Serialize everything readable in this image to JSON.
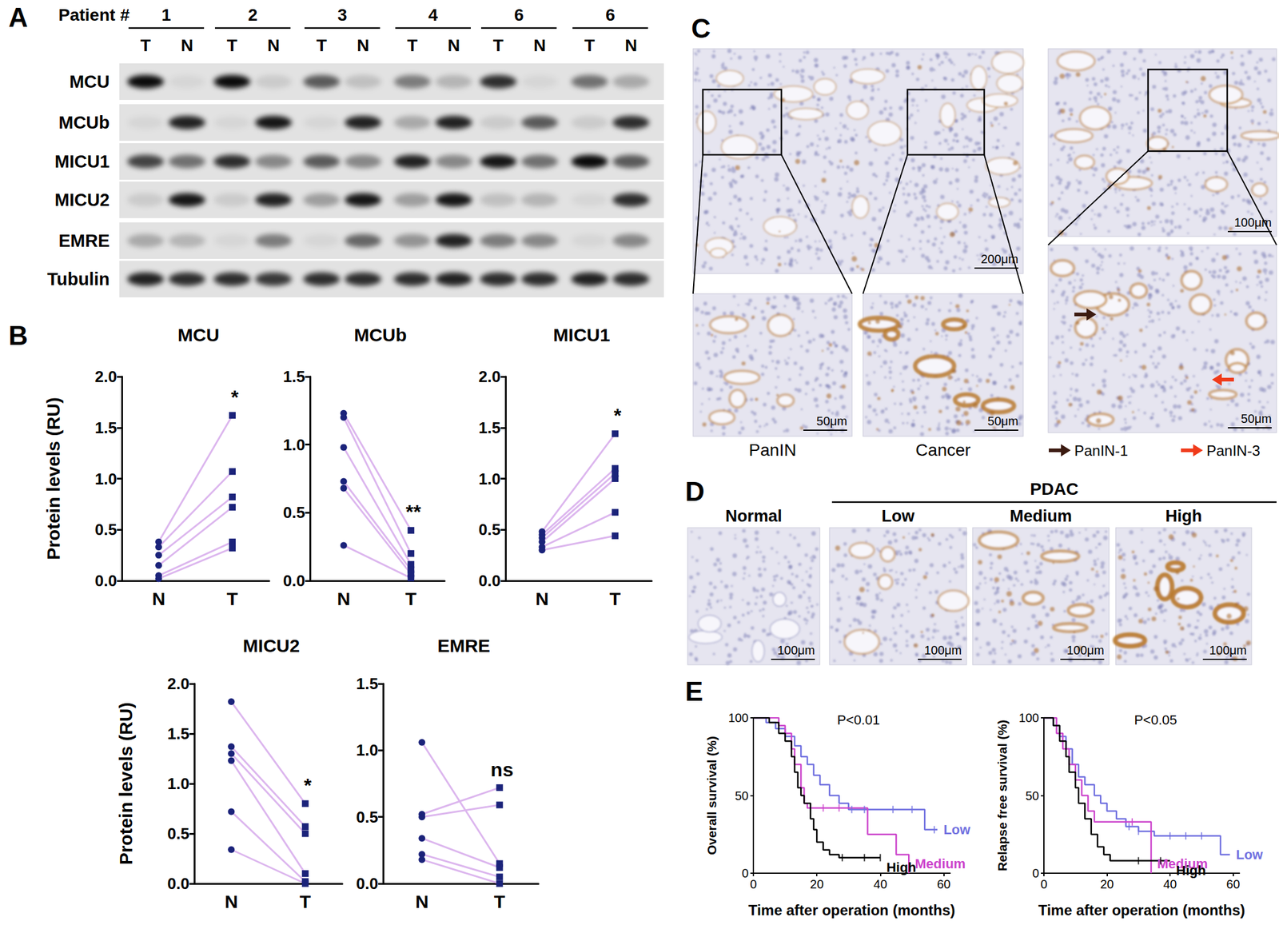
{
  "panel_labels": [
    "A",
    "B",
    "C",
    "D",
    "E"
  ],
  "panel_A": {
    "header": "Patient #",
    "patients": [
      "1",
      "2",
      "3",
      "4",
      "6",
      "6"
    ],
    "lanes": [
      "T",
      "N"
    ],
    "rows": [
      {
        "label": "MCU",
        "bands": [
          0.95,
          0.05,
          0.95,
          0.1,
          0.6,
          0.15,
          0.45,
          0.2,
          0.8,
          0.05,
          0.5,
          0.25
        ]
      },
      {
        "label": "MCUb",
        "bands": [
          0.05,
          0.85,
          0.05,
          0.9,
          0.05,
          0.85,
          0.25,
          0.85,
          0.1,
          0.6,
          0.1,
          0.8
        ]
      },
      {
        "label": "MICU1",
        "bands": [
          0.7,
          0.5,
          0.8,
          0.4,
          0.6,
          0.4,
          0.85,
          0.4,
          0.9,
          0.5,
          0.95,
          0.6
        ]
      },
      {
        "label": "MICU2",
        "bands": [
          0.1,
          0.9,
          0.1,
          0.85,
          0.3,
          0.9,
          0.3,
          0.9,
          0.15,
          0.2,
          0.05,
          0.8
        ]
      },
      {
        "label": "EMRE",
        "bands": [
          0.25,
          0.2,
          0.05,
          0.45,
          0.05,
          0.55,
          0.35,
          0.85,
          0.45,
          0.4,
          0.05,
          0.4
        ]
      },
      {
        "label": "Tubulin",
        "bands": [
          0.85,
          0.8,
          0.8,
          0.75,
          0.8,
          0.8,
          0.8,
          0.85,
          0.8,
          0.8,
          0.85,
          0.8
        ]
      }
    ]
  },
  "chart_data": [
    {
      "type": "paired",
      "title": "MCU",
      "ylabel": "Protein levels (RU)",
      "annotation": "*",
      "grid": false,
      "categories": [
        "N",
        "T"
      ],
      "color": "#1b237a",
      "ylim": [
        0,
        2
      ],
      "yticks": [
        {
          "value": 0,
          "label": "0.0"
        },
        0.5,
        {
          "value": 1,
          "label": "1.0"
        },
        1.5,
        {
          "value": 2,
          "label": "2.0"
        }
      ],
      "series": [
        {
          "color": "#dcb6ee",
          "values": [
            0.38,
            1.62
          ]
        },
        {
          "color": "#dcb6ee",
          "values": [
            0.33,
            1.07
          ]
        },
        {
          "color": "#dcb6ee",
          "values": [
            0.25,
            0.82
          ]
        },
        {
          "color": "#dcb6ee",
          "values": [
            0.15,
            0.72
          ]
        },
        {
          "color": "#dcb6ee",
          "values": [
            0.05,
            0.38
          ]
        },
        {
          "color": "#dcb6ee",
          "values": [
            0.02,
            0.32
          ]
        }
      ]
    },
    {
      "type": "paired",
      "title": "MCUb",
      "annotation": "**",
      "grid": false,
      "categories": [
        "N",
        "T"
      ],
      "color": "#1b237a",
      "ylim": [
        0,
        1.5
      ],
      "yticks": [
        {
          "value": 0,
          "label": "0.0"
        },
        0.5,
        {
          "value": 1,
          "label": "1.0"
        },
        1.5
      ],
      "series": [
        {
          "color": "#dcb6ee",
          "values": [
            1.23,
            0.37
          ]
        },
        {
          "color": "#dcb6ee",
          "values": [
            1.2,
            0.2
          ]
        },
        {
          "color": "#dcb6ee",
          "values": [
            0.98,
            0.12
          ]
        },
        {
          "color": "#dcb6ee",
          "values": [
            0.73,
            0.08
          ]
        },
        {
          "color": "#dcb6ee",
          "values": [
            0.68,
            0.05
          ]
        },
        {
          "color": "#dcb6ee",
          "values": [
            0.26,
            0.02
          ]
        }
      ]
    },
    {
      "type": "paired",
      "title": "MICU1",
      "annotation": "*",
      "grid": false,
      "categories": [
        "N",
        "T"
      ],
      "color": "#1b237a",
      "ylim": [
        0,
        2
      ],
      "yticks": [
        {
          "value": 0,
          "label": "0.0"
        },
        0.5,
        {
          "value": 1,
          "label": "1.0"
        },
        1.5,
        {
          "value": 2,
          "label": "2.0"
        }
      ],
      "series": [
        {
          "color": "#dcb6ee",
          "values": [
            0.48,
            1.44
          ]
        },
        {
          "color": "#dcb6ee",
          "values": [
            0.45,
            1.1
          ]
        },
        {
          "color": "#dcb6ee",
          "values": [
            0.42,
            1.05
          ]
        },
        {
          "color": "#dcb6ee",
          "values": [
            0.38,
            1.0
          ]
        },
        {
          "color": "#dcb6ee",
          "values": [
            0.33,
            0.67
          ]
        },
        {
          "color": "#dcb6ee",
          "values": [
            0.3,
            0.44
          ]
        }
      ]
    },
    {
      "type": "paired",
      "title": "MICU2",
      "ylabel": "Protein levels (RU)",
      "annotation": "*",
      "grid": false,
      "categories": [
        "N",
        "T"
      ],
      "color": "#1b237a",
      "ylim": [
        0,
        2
      ],
      "yticks": [
        {
          "value": 0,
          "label": "0.0"
        },
        0.5,
        {
          "value": 1,
          "label": "1.0"
        },
        1.5,
        {
          "value": 2,
          "label": "2.0"
        }
      ],
      "series": [
        {
          "color": "#dcb6ee",
          "values": [
            1.82,
            0.8
          ]
        },
        {
          "color": "#dcb6ee",
          "values": [
            1.37,
            0.57
          ]
        },
        {
          "color": "#dcb6ee",
          "values": [
            1.3,
            0.5
          ]
        },
        {
          "color": "#dcb6ee",
          "values": [
            1.23,
            0.1
          ]
        },
        {
          "color": "#dcb6ee",
          "values": [
            0.72,
            0.02
          ]
        },
        {
          "color": "#dcb6ee",
          "values": [
            0.34,
            0.0
          ]
        }
      ]
    },
    {
      "type": "paired",
      "title": "EMRE",
      "annotation": "ns",
      "grid": false,
      "categories": [
        "N",
        "T"
      ],
      "color": "#1b237a",
      "ylim": [
        0,
        1.5
      ],
      "yticks": [
        {
          "value": 0,
          "label": "0.0"
        },
        0.5,
        {
          "value": 1,
          "label": "1.0"
        },
        1.5
      ],
      "series": [
        {
          "color": "#dcb6ee",
          "values": [
            1.06,
            0.15
          ]
        },
        {
          "color": "#dcb6ee",
          "values": [
            0.52,
            0.72
          ]
        },
        {
          "color": "#dcb6ee",
          "values": [
            0.5,
            0.59
          ]
        },
        {
          "color": "#dcb6ee",
          "values": [
            0.34,
            0.12
          ]
        },
        {
          "color": "#dcb6ee",
          "values": [
            0.22,
            0.05
          ]
        },
        {
          "color": "#dcb6ee",
          "values": [
            0.18,
            0.0
          ]
        }
      ]
    },
    {
      "type": "survival",
      "ylabel": "Overall survival (%)",
      "xlabel": "Time after operation (months)",
      "annotation": "P<0.01",
      "grid": false,
      "xlim": [
        0,
        62
      ],
      "xticks": [
        0,
        20,
        40,
        60
      ],
      "ylim": [
        0,
        100
      ],
      "yticks": [
        0,
        50,
        100
      ],
      "series": [
        {
          "name": "Low",
          "color": "#7070e0",
          "x": [
            0,
            4,
            7,
            10,
            13,
            15,
            17,
            19,
            21,
            24,
            27,
            30,
            54,
            58
          ],
          "values": [
            100,
            97,
            93,
            88,
            82,
            75,
            70,
            63,
            57,
            50,
            45,
            41,
            28,
            28
          ],
          "censored_x": [
            31,
            35,
            44,
            50,
            57
          ],
          "censored_values": [
            41,
            41,
            41,
            41,
            28
          ]
        },
        {
          "name": "Medium",
          "color": "#cc44cc",
          "x": [
            0,
            8,
            10,
            12,
            13,
            15,
            16,
            17,
            36,
            45,
            49
          ],
          "values": [
            100,
            95,
            90,
            80,
            70,
            55,
            45,
            42,
            25,
            12,
            0
          ],
          "censored_x": [
            22,
            27
          ],
          "censored_values": [
            42,
            42
          ]
        },
        {
          "name": "High",
          "color": "#000000",
          "x": [
            0,
            5,
            8,
            10,
            12,
            13,
            14,
            15,
            16,
            18,
            19,
            20,
            22,
            24,
            27,
            40
          ],
          "values": [
            100,
            97,
            90,
            85,
            75,
            65,
            55,
            50,
            45,
            35,
            28,
            20,
            15,
            12,
            10,
            10
          ],
          "censored_x": [
            28,
            35,
            40
          ],
          "censored_values": [
            10,
            10,
            10
          ]
        }
      ]
    },
    {
      "type": "survival",
      "ylabel": "Relapse free survival (%)",
      "xlabel": "Time after operation (months)",
      "annotation": "P<0.05",
      "grid": false,
      "xlim": [
        0,
        62
      ],
      "xticks": [
        0,
        20,
        40,
        60
      ],
      "ylim": [
        0,
        100
      ],
      "yticks": [
        0,
        50,
        100
      ],
      "series": [
        {
          "name": "Low",
          "color": "#7070e0",
          "x": [
            0,
            3,
            5,
            7,
            9,
            11,
            13,
            16,
            18,
            20,
            23,
            26,
            30,
            35,
            56,
            59
          ],
          "values": [
            100,
            95,
            88,
            80,
            70,
            62,
            57,
            50,
            45,
            40,
            35,
            30,
            27,
            24,
            12,
            12
          ],
          "censored_x": [
            27,
            30,
            40,
            45,
            50
          ],
          "censored_values": [
            30,
            27,
            24,
            24,
            24
          ]
        },
        {
          "name": "Medium",
          "color": "#cc44cc",
          "x": [
            0,
            4,
            6,
            8,
            10,
            12,
            14,
            16,
            34
          ],
          "values": [
            100,
            90,
            80,
            70,
            60,
            50,
            40,
            33,
            0
          ],
          "censored_x": [
            28
          ],
          "censored_values": [
            33
          ]
        },
        {
          "name": "High",
          "color": "#000000",
          "x": [
            0,
            3,
            5,
            7,
            8,
            10,
            11,
            13,
            15,
            17,
            19,
            21,
            40
          ],
          "values": [
            100,
            95,
            85,
            75,
            65,
            55,
            45,
            35,
            25,
            17,
            12,
            8,
            8
          ],
          "censored_x": [
            30,
            37
          ],
          "censored_values": [
            8,
            8
          ]
        }
      ]
    }
  ],
  "panel_C": {
    "overview_left": {
      "scale_bar": "200μm"
    },
    "insets_left": [
      {
        "label": "PanIN",
        "scale_bar": "50μm"
      },
      {
        "label": "Cancer",
        "scale_bar": "50μm"
      }
    ],
    "overview_right": {
      "scale_bar": "100μm"
    },
    "inset_right": {
      "scale_bar": "50μm"
    },
    "arrows": [
      {
        "label": "PanIN-1",
        "color": "#3b1a10"
      },
      {
        "label": "PanIN-3",
        "color": "#f03a1a"
      }
    ]
  },
  "panel_D": {
    "group": "PDAC",
    "images": [
      {
        "label": "Normal",
        "scale_bar": "100μm"
      },
      {
        "label": "Low",
        "scale_bar": "100μm"
      },
      {
        "label": "Medium",
        "scale_bar": "100μm"
      },
      {
        "label": "High",
        "scale_bar": "100μm"
      }
    ]
  }
}
